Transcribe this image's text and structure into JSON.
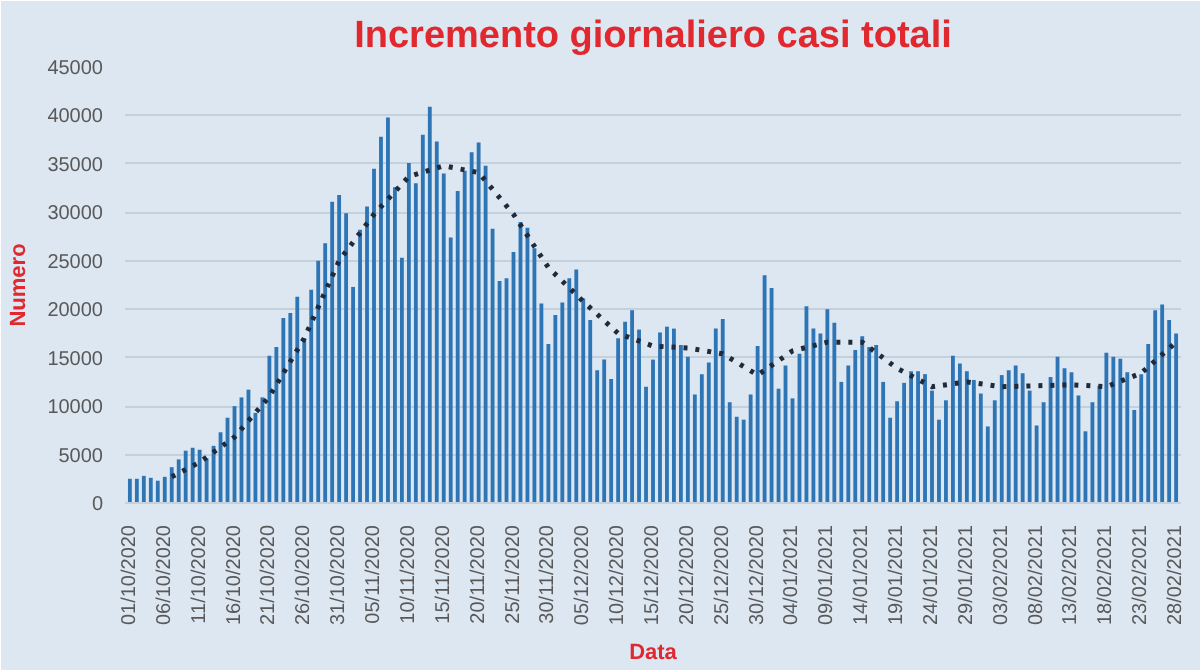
{
  "chart_data": {
    "type": "bar",
    "title": "Incremento giornaliero casi totali",
    "xlabel": "Data",
    "ylabel": "Numero",
    "categories": [
      "01/10/2020",
      null,
      null,
      null,
      null,
      "06/10/2020",
      null,
      null,
      null,
      null,
      "11/10/2020",
      null,
      null,
      null,
      null,
      "16/10/2020",
      null,
      null,
      null,
      null,
      "21/10/2020",
      null,
      null,
      null,
      null,
      "26/10/2020",
      null,
      null,
      null,
      null,
      "31/10/2020",
      null,
      null,
      null,
      null,
      "05/11/2020",
      null,
      null,
      null,
      null,
      "10/11/2020",
      null,
      null,
      null,
      null,
      "15/11/2020",
      null,
      null,
      null,
      null,
      "20/11/2020",
      null,
      null,
      null,
      null,
      "25/11/2020",
      null,
      null,
      null,
      null,
      "30/11/2020",
      null,
      null,
      null,
      null,
      "05/12/2020",
      null,
      null,
      null,
      null,
      "10/12/2020",
      null,
      null,
      null,
      null,
      "15/12/2020",
      null,
      null,
      null,
      null,
      "20/12/2020",
      null,
      null,
      null,
      null,
      "25/12/2020",
      null,
      null,
      null,
      null,
      "30/12/2020",
      null,
      null,
      null,
      null,
      "04/01/2021",
      null,
      null,
      null,
      null,
      "09/01/2021",
      null,
      null,
      null,
      null,
      "14/01/2021",
      null,
      null,
      null,
      null,
      "19/01/2021",
      null,
      null,
      null,
      null,
      "24/01/2021",
      null,
      null,
      null,
      null,
      "29/01/2021",
      null,
      null,
      null,
      null,
      "03/02/2021",
      null,
      null,
      null,
      null,
      "08/02/2021",
      null,
      null,
      null,
      null,
      "13/02/2021",
      null,
      null,
      null,
      null,
      "18/02/2021",
      null,
      null,
      null,
      null,
      "23/02/2021",
      null,
      null,
      null,
      null,
      "28/02/2021"
    ],
    "series": [
      {
        "color": "#2e75b6",
        "values": [
          2500,
          2500,
          2800,
          2600,
          2300,
          2700,
          3700,
          4500,
          5400,
          5700,
          5500,
          4600,
          5900,
          7300,
          8800,
          10000,
          10900,
          11700,
          9300,
          10900,
          15200,
          16100,
          19100,
          19600,
          21300,
          17000,
          22000,
          25000,
          26800,
          31100,
          31800,
          29900,
          22300,
          28200,
          30600,
          34500,
          37800,
          39800,
          32600,
          25300,
          35100,
          33000,
          38000,
          40900,
          37300,
          34000,
          27400,
          32200,
          34300,
          36200,
          37200,
          34800,
          28300,
          22900,
          23200,
          25900,
          29000,
          28400,
          26300,
          20600,
          16400,
          19400,
          20700,
          23200,
          24100,
          21100,
          18900,
          13700,
          14800,
          12800,
          17000,
          18700,
          19900,
          17900,
          12000,
          14800,
          17600,
          18200,
          18000,
          16300,
          15100,
          11200,
          13300,
          14500,
          18000,
          19000,
          10400,
          8900,
          8600,
          11200,
          16200,
          23500,
          22200,
          11800,
          14200,
          10800,
          15400,
          20300,
          18000,
          17500,
          20000,
          18600,
          12500,
          14200,
          15800,
          17200,
          16100,
          16300,
          12500,
          8800,
          10500,
          12400,
          13600,
          13600,
          13300,
          11600,
          8600,
          10600,
          15200,
          14400,
          13600,
          12700,
          11300,
          7900,
          10600,
          13200,
          13700,
          14200,
          13400,
          11600,
          8000,
          10400,
          13000,
          15100,
          13900,
          13500,
          11100,
          7400,
          10400,
          12100,
          15500,
          15100,
          14900,
          13500,
          9600,
          13300,
          16400,
          19900,
          20500,
          18900,
          17500
        ]
      },
      {
        "type": "line",
        "color": "#1f2a3a",
        "line_style": "dotted",
        "values": [
          null,
          null,
          null,
          null,
          null,
          null,
          2700,
          null,
          null,
          null,
          4200,
          null,
          null,
          null,
          null,
          6800,
          null,
          null,
          null,
          null,
          11000,
          null,
          null,
          null,
          null,
          17000,
          null,
          null,
          null,
          null,
          25000,
          null,
          null,
          null,
          null,
          29800,
          null,
          null,
          null,
          null,
          33700,
          null,
          null,
          null,
          null,
          34800,
          null,
          null,
          null,
          null,
          34100,
          null,
          null,
          null,
          null,
          29800,
          null,
          null,
          null,
          null,
          24300,
          null,
          null,
          null,
          null,
          20800,
          null,
          null,
          null,
          null,
          17500,
          null,
          null,
          null,
          null,
          16200,
          null,
          null,
          null,
          null,
          16000,
          null,
          null,
          null,
          null,
          15400,
          null,
          null,
          null,
          null,
          13200,
          null,
          null,
          null,
          null,
          15700,
          null,
          null,
          null,
          null,
          16600,
          null,
          null,
          null,
          null,
          16600,
          null,
          null,
          null,
          null,
          13900,
          null,
          null,
          null,
          null,
          12000,
          null,
          null,
          null,
          null,
          12500,
          null,
          null,
          null,
          null,
          12000,
          null,
          null,
          null,
          null,
          12100,
          null,
          null,
          null,
          null,
          12200,
          null,
          null,
          null,
          null,
          12000,
          null,
          null,
          null,
          null,
          13400,
          null,
          null,
          null,
          null,
          16600
        ]
      }
    ],
    "ylim": [
      0,
      45000
    ],
    "yticks": [
      0,
      5000,
      10000,
      15000,
      20000,
      25000,
      30000,
      35000,
      40000,
      45000
    ],
    "grid": "y"
  }
}
